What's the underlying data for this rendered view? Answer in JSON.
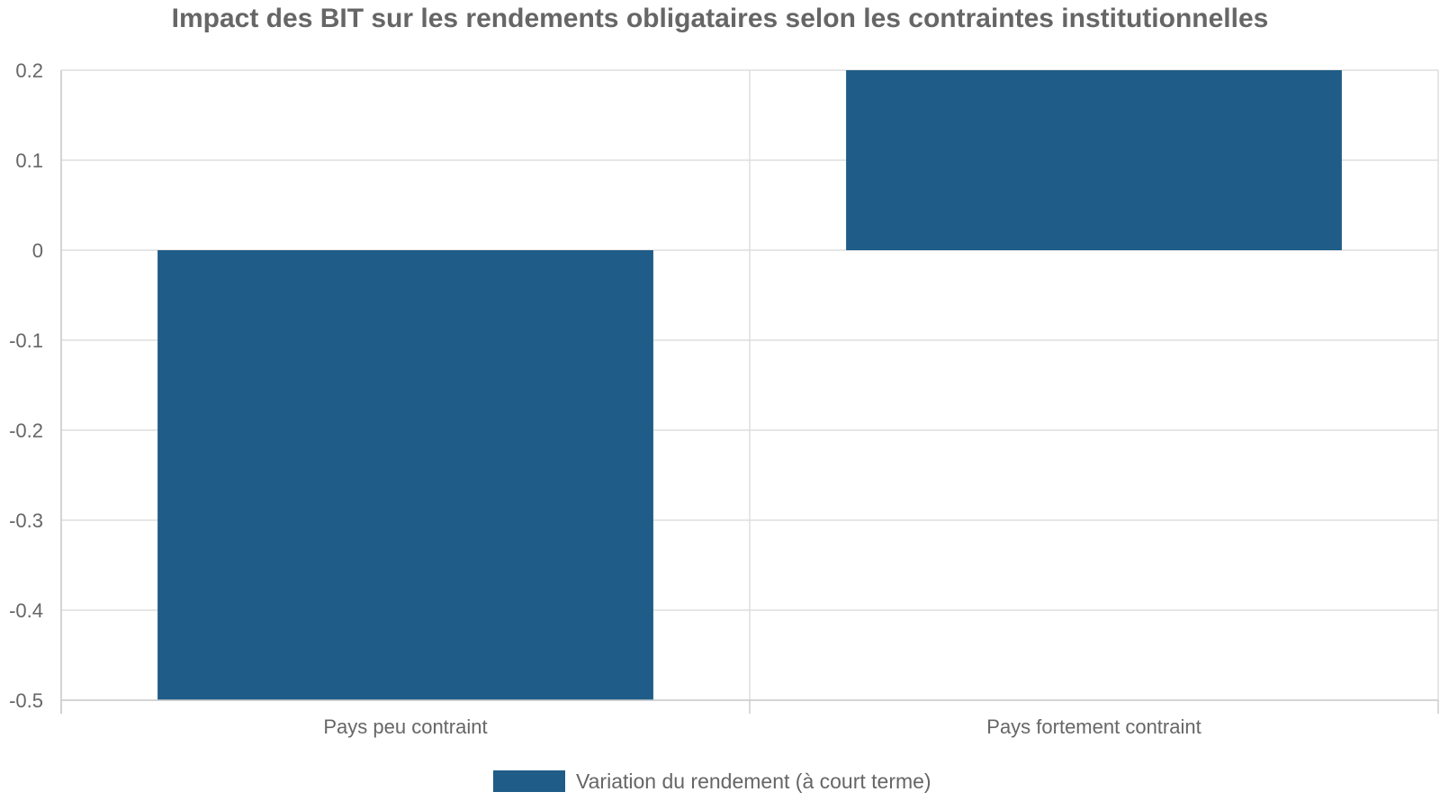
{
  "chart_data": {
    "type": "bar",
    "title": "Impact des BIT sur les rendements obligataires selon les contraintes institutionnelles",
    "xlabel": "",
    "ylabel": "",
    "categories": [
      "Pays peu contraint",
      "Pays fortement contraint"
    ],
    "series": [
      {
        "name": "Variation du rendement (à court terme)",
        "values": [
          -0.5,
          0.2
        ],
        "color": "#1f5c87"
      }
    ],
    "ylim": [
      -0.5,
      0.2
    ],
    "yticks": [
      "0.2",
      "0.1",
      "0",
      "-0.1",
      "-0.2",
      "-0.3",
      "-0.4",
      "-0.5"
    ],
    "ytick_values": [
      0.2,
      0.1,
      0,
      -0.1,
      -0.2,
      -0.3,
      -0.4,
      -0.5
    ],
    "grid": true,
    "legend_position": "bottom"
  }
}
